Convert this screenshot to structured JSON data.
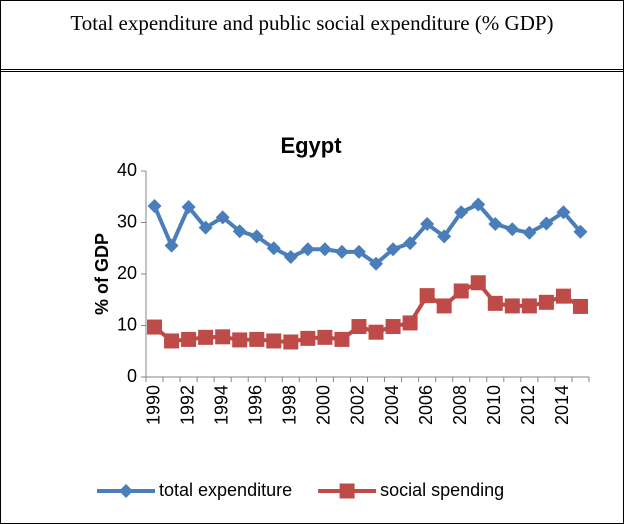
{
  "header": {
    "title": "Total expenditure and public social expenditure (% GDP)"
  },
  "chart_data": {
    "type": "line",
    "title": "Egypt",
    "y_label": "% of GDP",
    "categories": [
      "1990",
      null,
      "1992",
      null,
      "1994",
      null,
      "1996",
      null,
      "1998",
      null,
      "2000",
      null,
      "2002",
      null,
      "2004",
      null,
      "2006",
      null,
      "2008",
      null,
      "2010",
      null,
      "2012",
      null,
      "2014",
      null
    ],
    "series": [
      {
        "name": "total expenditure",
        "color": "#4a7ebb",
        "marker": "diamond",
        "values": [
          33.2,
          25.5,
          33.0,
          29.0,
          31.0,
          28.3,
          27.3,
          25.0,
          23.3,
          24.8,
          24.8,
          24.3,
          24.3,
          22.0,
          24.8,
          26.0,
          29.7,
          27.3,
          32.0,
          33.5,
          29.7,
          28.7,
          28.0,
          29.8,
          32.0,
          28.2
        ]
      },
      {
        "name": "social spending",
        "color": "#be4b48",
        "marker": "square",
        "values": [
          9.7,
          7.0,
          7.3,
          7.7,
          7.8,
          7.2,
          7.3,
          7.0,
          6.8,
          7.5,
          7.7,
          7.3,
          9.8,
          8.7,
          9.8,
          10.5,
          15.8,
          13.8,
          16.7,
          18.3,
          14.3,
          13.8,
          13.8,
          14.5,
          15.7,
          13.7
        ]
      }
    ],
    "ylim": [
      0,
      40
    ],
    "yticks": [
      0,
      10,
      20,
      30,
      40
    ],
    "grid": false,
    "legend": "bottom"
  }
}
